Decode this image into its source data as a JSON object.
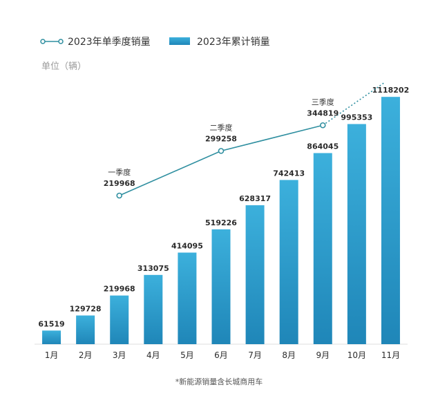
{
  "legend": {
    "quarterly_label": "2023年单季度销量",
    "cumulative_label": "2023年累计销量"
  },
  "unit": "单位（辆）",
  "footnote": "*新能源销量含长城商用车",
  "colors": {
    "bar_top": "#3cb0dc",
    "bar_bottom": "#1f86b8",
    "line": "#2f8fa0",
    "text": "#2b2b2b"
  },
  "chart_data": [
    {
      "type": "bar",
      "series": [
        {
          "name": "2023年累计销量",
          "categories": [
            "1月",
            "2月",
            "3月",
            "4月",
            "5月",
            "6月",
            "7月",
            "8月",
            "9月",
            "10月",
            "11月"
          ],
          "values": [
            61519,
            129728,
            219968,
            313075,
            414095,
            519226,
            628317,
            742413,
            864045,
            995353,
            1118202
          ],
          "labels": [
            "61519",
            "129728",
            "219968",
            "313075",
            "414095",
            "519226",
            "628317",
            "742413",
            "864045",
            "995353",
            "1118202"
          ]
        }
      ],
      "ylim": [
        0,
        1150000
      ]
    },
    {
      "type": "line",
      "series": [
        {
          "name": "2023年单季度销量",
          "x": [
            "3月",
            "6月",
            "9月"
          ],
          "points": [
            {
              "label": "一季度",
              "value": 219968,
              "value_text": "219968"
            },
            {
              "label": "二季度",
              "value": 299258,
              "value_text": "299258"
            },
            {
              "label": "三季度",
              "value": 344819,
              "value_text": "344819"
            }
          ],
          "trend_extension": "dotted"
        }
      ]
    }
  ]
}
